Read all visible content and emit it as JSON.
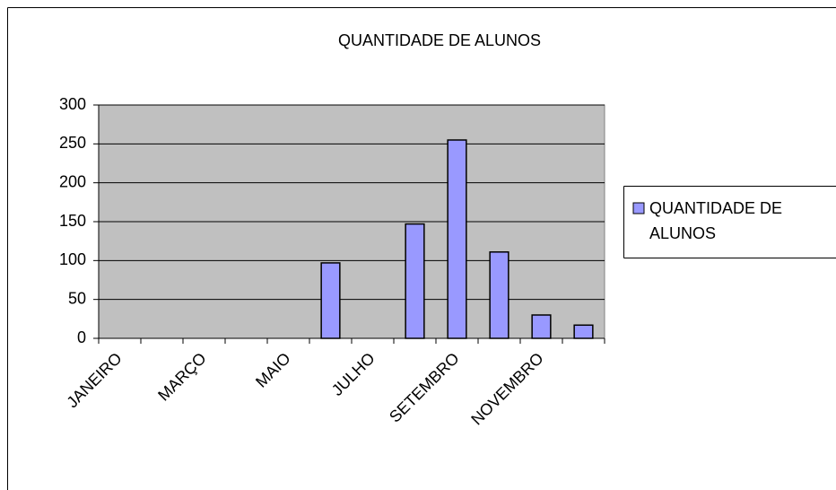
{
  "chart_data": {
    "type": "bar",
    "title": "QUANTIDADE DE ALUNOS",
    "categories": [
      "JANEIRO",
      null,
      "MARÇO",
      null,
      "MAIO",
      null,
      "JULHO",
      null,
      "SETEMBRO",
      null,
      "NOVEMBRO",
      null
    ],
    "series": [
      {
        "name": "QUANTIDADE DE ALUNOS",
        "color": "#9999ff",
        "values": [
          0,
          0,
          0,
          0,
          0,
          97,
          0,
          147,
          255,
          111,
          30,
          17
        ]
      }
    ],
    "ylim": [
      0,
      300
    ],
    "yticks": [
      0,
      50,
      100,
      150,
      200,
      250,
      300
    ],
    "grid": true,
    "legend": "right"
  }
}
